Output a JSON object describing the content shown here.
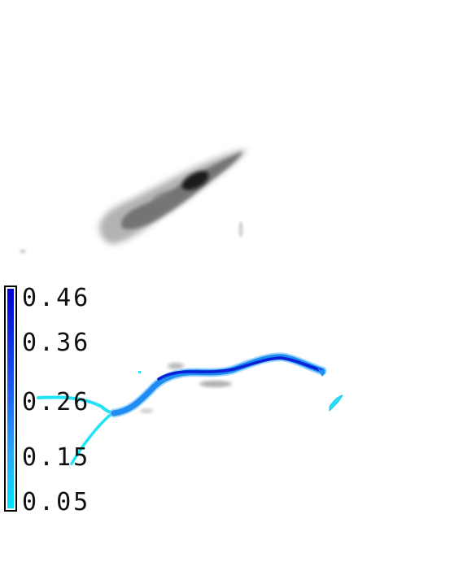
{
  "colorbar": {
    "tick_labels": [
      "0.46",
      "0.36",
      "0.26",
      "0.15",
      "0.05"
    ],
    "range": [
      0.05,
      0.46
    ],
    "color_low": "#00e5ff",
    "color_high": "#0000d0"
  },
  "colors": {
    "grayscale_blob": "#2a2a2a",
    "streak_dark": "#0a1fd8",
    "streak_mid": "#1e8cf0",
    "streak_light": "#20e0f5"
  }
}
